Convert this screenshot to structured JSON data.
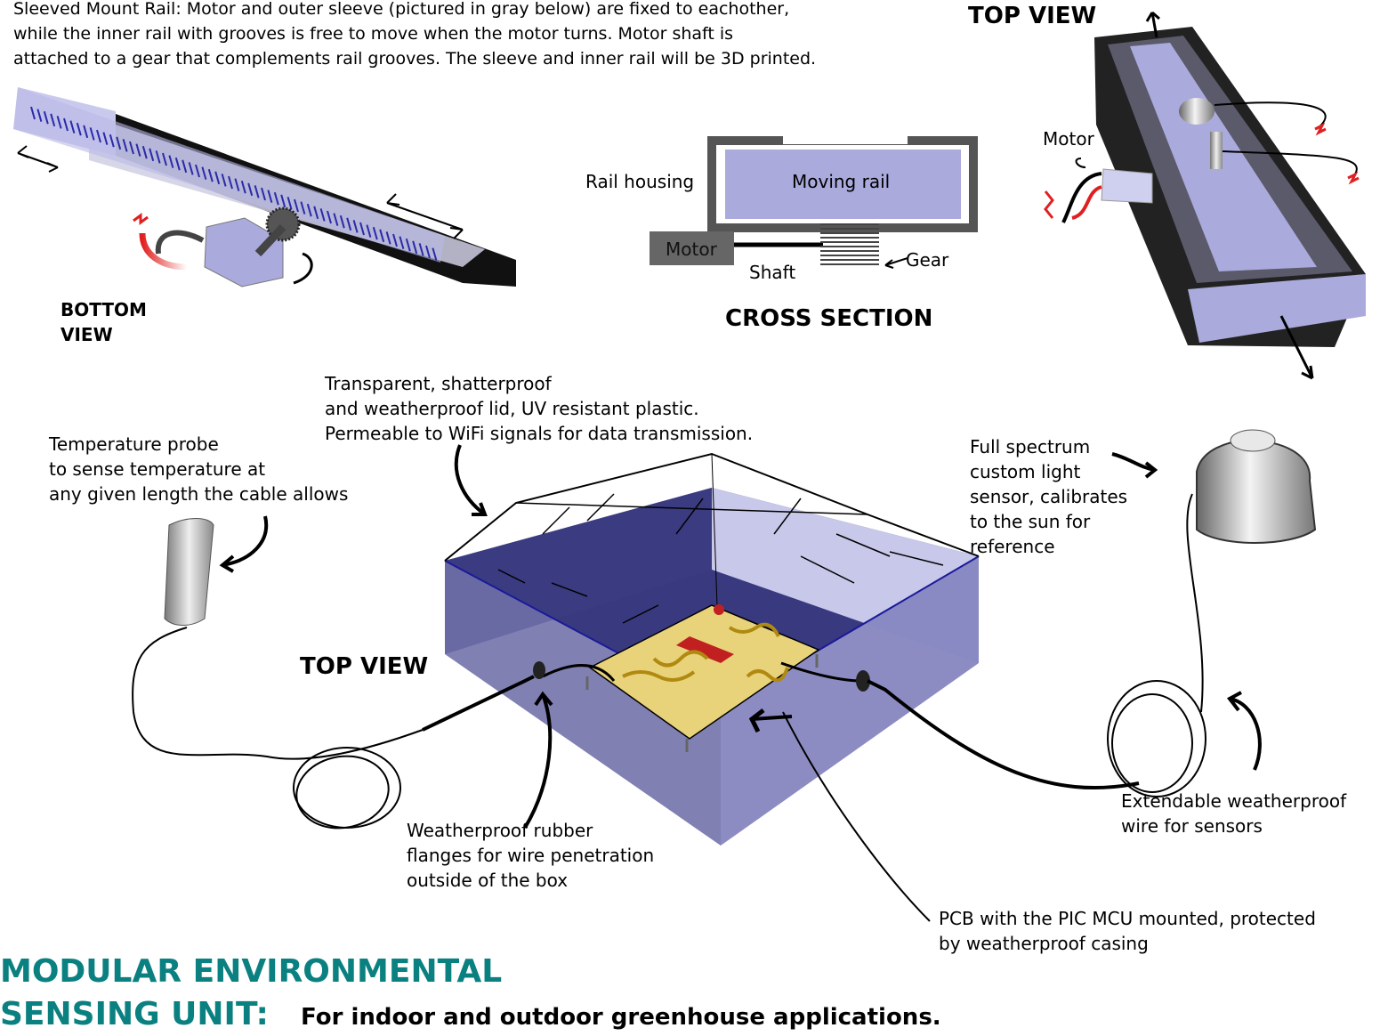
{
  "rail_description": "Sleeved Mount Rail: Motor and outer sleeve (pictured in gray below) are fixed to eachother,\nwhile the inner rail with grooves is free to move when the motor turns. Motor shaft is\nattached to a gear that complements rail grooves. The sleeve and inner rail will be 3D printed.",
  "bottom_view_label": "BOTTOM\nVIEW",
  "top_view_label": "TOP VIEW",
  "cross_section": {
    "title": "CROSS SECTION",
    "rail_housing": "Rail housing",
    "moving_rail": "Moving rail",
    "motor": "Motor",
    "shaft": "Shaft",
    "gear": "Gear"
  },
  "topview_motor_label": "Motor",
  "lid_text": "Transparent, shatterproof\nand weatherproof lid, UV resistant plastic.\nPermeable to WiFi signals for data transmission.",
  "temp_probe_text": "Temperature probe\nto sense temperature at\nany given length the cable allows",
  "light_sensor_text": "Full spectrum\ncustom light\nsensor, calibrates\nto the sun for\nreference",
  "box_top_view_label": "TOP VIEW",
  "flanges_text": "Weatherproof rubber\nflanges for wire penetration\noutside of the box",
  "wire_text": "Extendable weatherproof\nwire for sensors",
  "pcb_text": "PCB with the PIC MCU mounted, protected\nby weatherproof casing",
  "title_line1": "MODULAR ENVIRONMENTAL",
  "title_line2": "SENSING UNIT:",
  "subtitle": "For indoor and outdoor greenhouse applications.",
  "colors": {
    "title": "#0a8080",
    "rail": "#aaaadd",
    "box": "#3a3a8c",
    "pcb": "#e8d27a",
    "chip": "#c02020"
  }
}
